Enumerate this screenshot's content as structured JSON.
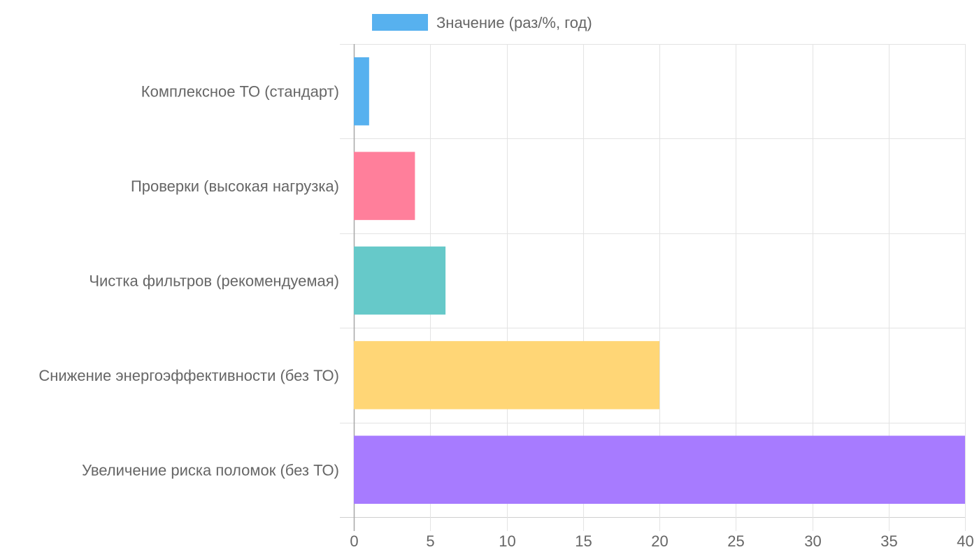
{
  "chart_data": {
    "type": "bar",
    "orientation": "horizontal",
    "categories": [
      "Комплексное ТО (стандарт)",
      "Проверки (высокая нагрузка)",
      "Чистка фильтров (рекомендуемая)",
      "Снижение энергоэффективности (без ТО)",
      "Увеличение риска поломок (без ТО)"
    ],
    "series": [
      {
        "name": "Значение (раз/%, год)",
        "values": [
          1,
          4,
          6,
          20,
          40
        ]
      }
    ],
    "colors": [
      "#57b1ef",
      "#ff7f9b",
      "#66c9c9",
      "#ffd676",
      "#a77bff"
    ],
    "xlim": [
      0,
      40
    ],
    "xticks": [
      0,
      5,
      10,
      15,
      20,
      25,
      30,
      35,
      40
    ],
    "grid": true,
    "legend_position": "top"
  }
}
